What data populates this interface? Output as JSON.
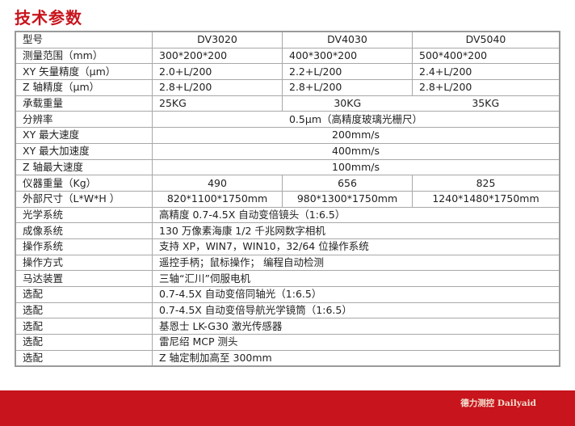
{
  "title": "技术参数",
  "models": [
    "DV3020",
    "DV4030",
    "DV5040"
  ],
  "rows": {
    "model": {
      "label": "型号"
    },
    "range": {
      "label": "测量范围（mm）",
      "values": [
        "300*200*200",
        "400*300*200",
        "500*400*200"
      ]
    },
    "xy_acc": {
      "label": "XY 矢量精度（μm）",
      "values": [
        "2.0+L/200",
        "2.2+L/200",
        "2.4+L/200"
      ]
    },
    "z_acc": {
      "label": "Z 轴精度（μm）",
      "values": [
        "2.8+L/200",
        "2.8+L/200",
        "2.8+L/200"
      ]
    },
    "load": {
      "label": "承载重量",
      "values": [
        "25KG",
        "30KG",
        "35KG"
      ]
    },
    "resolution": {
      "label": "分辨率",
      "value": "0.5μm（高精度玻璃光栅尺）"
    },
    "xy_speed": {
      "label": "XY 最大速度",
      "value": "200mm/s"
    },
    "xy_accel": {
      "label": "XY 最大加速度",
      "value": "400mm/s"
    },
    "z_speed": {
      "label": "Z 轴最大速度",
      "value": "100mm/s"
    },
    "weight": {
      "label": "仪器重量（Kg）",
      "values": [
        "490",
        "656",
        "825"
      ]
    },
    "size": {
      "label": "外部尺寸（L*W*H ）",
      "values": [
        "820*1100*1750mm",
        "980*1300*1750mm",
        "1240*1480*1750mm"
      ]
    },
    "optics": {
      "label": "光学系统",
      "value": "高精度 0.7-4.5X 自动变倍镜头（1:6.5）"
    },
    "imaging": {
      "label": "成像系统",
      "value": "130 万像素海康 1/2 千兆网数字相机"
    },
    "os": {
      "label": "操作系统",
      "value": "支持 XP，WIN7，WIN10，32/64 位操作系统"
    },
    "operation": {
      "label": "操作方式",
      "value": "遥控手柄；鼠标操作； 编程自动检测"
    },
    "motor": {
      "label": "马达装置",
      "value": "三轴“汇川”伺服电机"
    },
    "options": [
      {
        "label": "选配",
        "value": "0.7-4.5X 自动变倍同轴光（1:6.5）"
      },
      {
        "label": "选配",
        "value": "0.7-4.5X 自动变倍导航光学镜筒（1:6.5）"
      },
      {
        "label": "选配",
        "value": "基恩士 LK-G30 激光传感器"
      },
      {
        "label": "选配",
        "value": "雷尼绍 MCP 测头"
      },
      {
        "label": "选配",
        "value": "Z 轴定制加高至 300mm"
      }
    ]
  },
  "footer": {
    "brand": "德力测控 Dailyaid"
  },
  "colors": {
    "accent": "#c8141c"
  }
}
